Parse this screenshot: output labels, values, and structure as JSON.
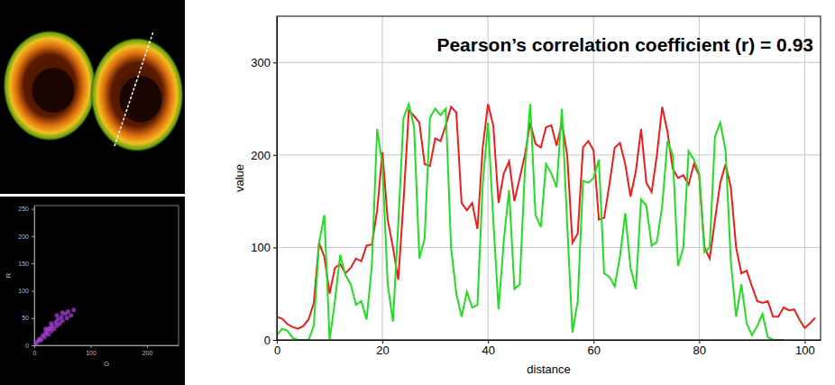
{
  "chart_data": [
    {
      "type": "scatter",
      "x_label": "G",
      "y_label": "R",
      "xlim": [
        0,
        256
      ],
      "ylim": [
        0,
        256
      ],
      "xticks": [
        0,
        100,
        200
      ],
      "yticks": [
        0,
        50,
        100,
        150,
        200,
        250
      ],
      "marker": "circle",
      "color": "#b040e0",
      "x": [
        2,
        5,
        8,
        10,
        12,
        15,
        18,
        20,
        22,
        25,
        25,
        28,
        30,
        32,
        35,
        38,
        40,
        42,
        45,
        48,
        50,
        55,
        58,
        60,
        65,
        70,
        30,
        20,
        40,
        50
      ],
      "values": [
        3,
        6,
        9,
        12,
        10,
        18,
        15,
        22,
        25,
        20,
        30,
        32,
        26,
        35,
        30,
        42,
        36,
        48,
        40,
        52,
        45,
        58,
        50,
        62,
        55,
        65,
        40,
        30,
        55,
        60
      ]
    },
    {
      "type": "line",
      "title": "Pearson’s correlation coefficient (r) = 0.93",
      "x_label": "distance",
      "y_label": "value",
      "xlim": [
        0,
        103
      ],
      "ylim": [
        0,
        350
      ],
      "xticks": [
        0,
        20,
        40,
        60,
        80,
        100
      ],
      "yticks": [
        0,
        100,
        200,
        300
      ],
      "grid": true,
      "x": [
        0,
        1,
        2,
        3,
        4,
        5,
        6,
        7,
        8,
        9,
        10,
        11,
        12,
        13,
        14,
        15,
        16,
        17,
        18,
        19,
        20,
        21,
        22,
        23,
        24,
        25,
        26,
        27,
        28,
        29,
        30,
        31,
        32,
        33,
        34,
        35,
        36,
        37,
        38,
        39,
        40,
        41,
        42,
        43,
        44,
        45,
        46,
        47,
        48,
        49,
        50,
        51,
        52,
        53,
        54,
        55,
        56,
        57,
        58,
        59,
        60,
        61,
        62,
        63,
        64,
        65,
        66,
        67,
        68,
        69,
        70,
        71,
        72,
        73,
        74,
        75,
        76,
        77,
        78,
        79,
        80,
        81,
        82,
        83,
        84,
        85,
        86,
        87,
        88,
        89,
        90,
        91,
        92,
        93,
        94,
        95,
        96,
        97,
        98,
        99,
        100,
        101,
        102
      ],
      "series": [
        {
          "color": "#ee1c1c",
          "values": [
            25,
            23,
            17,
            14,
            12,
            15,
            22,
            40,
            105,
            90,
            50,
            78,
            82,
            72,
            78,
            88,
            85,
            102,
            103,
            140,
            203,
            130,
            100,
            65,
            150,
            248,
            242,
            235,
            190,
            188,
            218,
            215,
            232,
            252,
            246,
            148,
            140,
            148,
            120,
            208,
            255,
            232,
            148,
            180,
            193,
            150,
            175,
            200,
            235,
            212,
            208,
            230,
            232,
            210,
            235,
            200,
            105,
            115,
            208,
            215,
            205,
            130,
            132,
            168,
            208,
            213,
            190,
            155,
            182,
            228,
            170,
            160,
            200,
            252,
            225,
            185,
            175,
            178,
            168,
            190,
            178,
            100,
            88,
            130,
            170,
            190,
            165,
            100,
            72,
            75,
            58,
            42,
            40,
            42,
            25,
            25,
            35,
            32,
            33,
            22,
            13,
            18,
            24
          ]
        },
        {
          "color": "#22dd22",
          "values": [
            5,
            12,
            10,
            2,
            0,
            0,
            0,
            15,
            105,
            135,
            0,
            42,
            92,
            70,
            60,
            38,
            42,
            22,
            80,
            228,
            190,
            60,
            20,
            125,
            240,
            255,
            230,
            88,
            110,
            240,
            250,
            243,
            250,
            100,
            50,
            25,
            52,
            35,
            38,
            168,
            235,
            130,
            33,
            108,
            162,
            55,
            60,
            185,
            255,
            135,
            122,
            190,
            180,
            165,
            250,
            125,
            8,
            42,
            172,
            170,
            175,
            195,
            72,
            68,
            58,
            90,
            137,
            78,
            55,
            152,
            145,
            102,
            106,
            145,
            215,
            200,
            80,
            100,
            204,
            195,
            180,
            95,
            100,
            220,
            235,
            205,
            85,
            25,
            60,
            18,
            5,
            15,
            28,
            3,
            0,
            0,
            0,
            null,
            null,
            null,
            null,
            null,
            null
          ]
        }
      ]
    }
  ]
}
